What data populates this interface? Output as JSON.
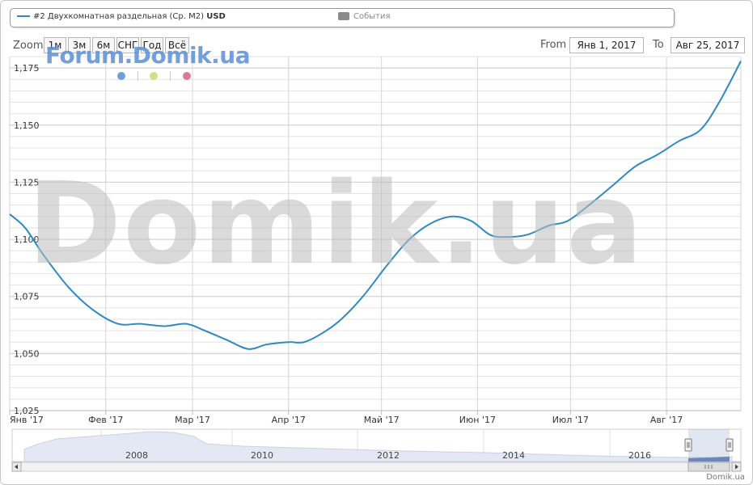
{
  "legend": {
    "series_name": "#2 Двухкомнатная раздельная (Ср. М2)",
    "series_unit": "USD",
    "events_label": "События"
  },
  "toolbar": {
    "zoom_label": "Zoom",
    "zoom_buttons": [
      "1м",
      "3м",
      "6м",
      "СНГ",
      "Год",
      "Всё"
    ],
    "from_label": "From",
    "from_value": "Янв 1, 2017",
    "to_label": "To",
    "to_value": "Авг 25, 2017"
  },
  "watermarks": {
    "forum": "Forum.Domik.ua",
    "main": "Domik.ua"
  },
  "credit": "Domik.ua",
  "colors": {
    "series": "#2f8ac3",
    "dot_blue": "#6f9fd8",
    "dot_yellow": "#d6df7a",
    "dot_pink": "#d97a98"
  },
  "chart_data": {
    "type": "line",
    "title": "",
    "xlabel": "",
    "ylabel": "",
    "ylim": [
      1.025,
      1.18
    ],
    "yticks": [
      "1,025",
      "1,050",
      "1,075",
      "1,100",
      "1,125",
      "1,150",
      "1,175"
    ],
    "xticks": [
      "Янв '17",
      "Фев '17",
      "Мар '17",
      "Апр '17",
      "Май '17",
      "Июн '17",
      "Июл '17",
      "Авг '17"
    ],
    "series": [
      {
        "x": [
          "2017-01-01",
          "2017-01-06",
          "2017-01-12",
          "2017-01-20",
          "2017-01-28",
          "2017-02-05",
          "2017-02-12",
          "2017-02-20",
          "2017-02-27",
          "2017-03-05",
          "2017-03-12",
          "2017-03-19",
          "2017-03-25",
          "2017-04-01",
          "2017-04-06",
          "2017-04-12",
          "2017-04-18",
          "2017-04-25",
          "2017-05-03",
          "2017-05-10",
          "2017-05-17",
          "2017-05-24",
          "2017-05-30",
          "2017-06-05",
          "2017-06-10",
          "2017-06-17",
          "2017-06-24",
          "2017-06-30",
          "2017-07-07",
          "2017-07-15",
          "2017-07-22",
          "2017-07-29",
          "2017-08-05",
          "2017-08-12",
          "2017-08-18",
          "2017-08-25"
        ],
        "values": [
          1.111,
          1.105,
          1.093,
          1.079,
          1.069,
          1.063,
          1.063,
          1.062,
          1.063,
          1.06,
          1.056,
          1.052,
          1.054,
          1.055,
          1.055,
          1.059,
          1.065,
          1.075,
          1.089,
          1.1,
          1.107,
          1.11,
          1.108,
          1.102,
          1.101,
          1.102,
          1.106,
          1.108,
          1.115,
          1.124,
          1.132,
          1.137,
          1.143,
          1.148,
          1.16,
          1.178
        ]
      }
    ],
    "navigator": {
      "labels": [
        "2008",
        "2010",
        "2012",
        "2014",
        "2016"
      ]
    }
  }
}
